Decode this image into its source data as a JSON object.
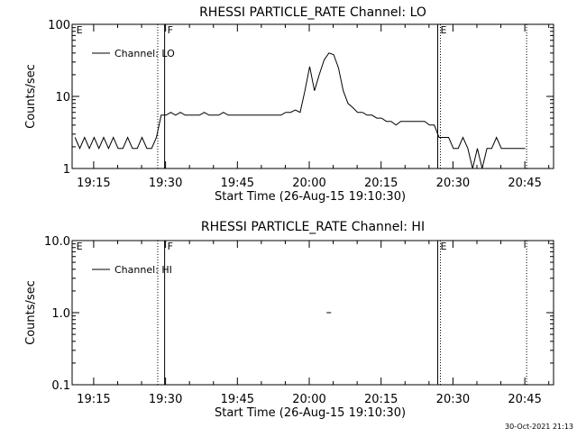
{
  "footer_timestamp": "30-Oct-2021 21:13",
  "chart_data": [
    {
      "type": "line",
      "title": "RHESSI PARTICLE_RATE Channel: LO",
      "xlabel": "Start Time (26-Aug-15 19:10:30)",
      "ylabel": "Counts/sec",
      "yscale": "log",
      "ylim": [
        1,
        100
      ],
      "xlim": [
        "19:10:30",
        "20:51:00"
      ],
      "y_tick_labels": [
        "1",
        "10",
        "100"
      ],
      "y_tick_values": [
        1,
        10,
        100
      ],
      "x_tick_labels": [
        "19:15",
        "19:30",
        "19:45",
        "20:00",
        "20:15",
        "20:30",
        "20:45"
      ],
      "legend": {
        "label": "Channel: LO",
        "placement": "top-left"
      },
      "markers": [
        {
          "label": "E",
          "time": "19:11"
        },
        {
          "label": "F",
          "time": "19:30"
        },
        {
          "label": "E",
          "time": "20:27"
        }
      ],
      "solid_lines": [
        "19:30",
        "20:27"
      ],
      "dotted_lines": [
        "19:28",
        "20:27",
        "20:45"
      ],
      "series": [
        {
          "name": "Channel: LO",
          "x": [
            "19:11",
            "19:12",
            "19:13",
            "19:14",
            "19:15",
            "19:16",
            "19:17",
            "19:18",
            "19:19",
            "19:20",
            "19:21",
            "19:22",
            "19:23",
            "19:24",
            "19:25",
            "19:26",
            "19:27",
            "19:28",
            "19:29",
            "19:30",
            "19:31",
            "19:32",
            "19:33",
            "19:34",
            "19:35",
            "19:36",
            "19:37",
            "19:38",
            "19:39",
            "19:40",
            "19:41",
            "19:42",
            "19:43",
            "19:44",
            "19:45",
            "19:46",
            "19:47",
            "19:48",
            "19:49",
            "19:50",
            "19:51",
            "19:52",
            "19:53",
            "19:54",
            "19:55",
            "19:56",
            "19:57",
            "19:58",
            "19:59",
            "20:00",
            "20:01",
            "20:02",
            "20:03",
            "20:04",
            "20:05",
            "20:06",
            "20:07",
            "20:08",
            "20:09",
            "20:10",
            "20:11",
            "20:12",
            "20:13",
            "20:14",
            "20:15",
            "20:16",
            "20:17",
            "20:18",
            "20:19",
            "20:20",
            "20:21",
            "20:22",
            "20:23",
            "20:24",
            "20:25",
            "20:26",
            "20:27",
            "20:28",
            "20:29",
            "20:30",
            "20:31",
            "20:32",
            "20:33",
            "20:34",
            "20:35",
            "20:36",
            "20:37",
            "20:38",
            "20:39",
            "20:40",
            "20:41",
            "20:42",
            "20:43",
            "20:44",
            "20:45"
          ],
          "y": [
            2.7,
            1.9,
            2.7,
            1.9,
            2.7,
            1.9,
            2.7,
            1.9,
            2.7,
            1.9,
            1.9,
            2.7,
            1.9,
            1.9,
            2.7,
            1.9,
            1.9,
            2.7,
            5.5,
            5.5,
            6,
            5.5,
            6,
            5.5,
            5.5,
            5.5,
            5.5,
            6,
            5.5,
            5.5,
            5.5,
            6,
            5.5,
            5.5,
            5.5,
            5.5,
            5.5,
            5.5,
            5.5,
            5.5,
            5.5,
            5.5,
            5.5,
            5.5,
            6,
            6,
            6.5,
            6,
            12,
            26,
            12,
            20,
            32,
            40,
            38,
            25,
            12,
            8,
            7,
            6,
            6,
            5.5,
            5.5,
            5,
            5,
            4.5,
            4.5,
            4,
            4.5,
            4.5,
            4.5,
            4.5,
            4.5,
            4.5,
            4,
            4,
            2.7,
            2.7,
            2.7,
            1.9,
            1.9,
            2.7,
            1.9,
            1,
            1.9,
            1,
            1.9,
            1.9,
            2.7,
            1.9,
            1.9,
            1.9,
            1.9,
            1.9,
            1.9
          ]
        }
      ]
    },
    {
      "type": "line",
      "title": "RHESSI PARTICLE_RATE Channel: HI",
      "xlabel": "Start Time (26-Aug-15 19:10:30)",
      "ylabel": "Counts/sec",
      "yscale": "log",
      "ylim": [
        0.1,
        10
      ],
      "xlim": [
        "19:10:30",
        "20:51:00"
      ],
      "y_tick_labels": [
        "0.1",
        "1.0",
        "10.0"
      ],
      "y_tick_values": [
        0.1,
        1,
        10
      ],
      "x_tick_labels": [
        "19:15",
        "19:30",
        "19:45",
        "20:00",
        "20:15",
        "20:30",
        "20:45"
      ],
      "legend": {
        "label": "Channel: HI",
        "placement": "top-left"
      },
      "markers": [
        {
          "label": "E",
          "time": "19:11"
        },
        {
          "label": "F",
          "time": "19:30"
        },
        {
          "label": "E",
          "time": "20:27"
        }
      ],
      "solid_lines": [
        "19:30",
        "20:27"
      ],
      "dotted_lines": [
        "19:28",
        "20:27",
        "20:45"
      ],
      "series": [
        {
          "name": "Channel: HI",
          "x": [
            "20:04"
          ],
          "y": [
            1.0
          ]
        }
      ]
    }
  ]
}
